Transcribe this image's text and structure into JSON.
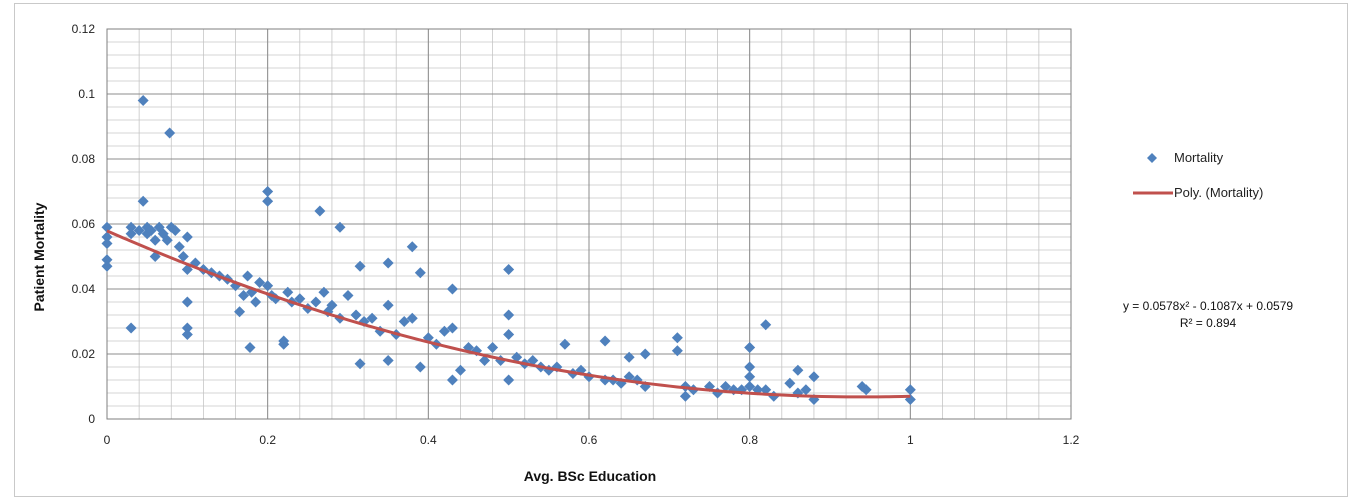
{
  "chart_data": {
    "type": "scatter",
    "xlabel": "Avg. BSc  Education",
    "ylabel": "Patient Mortality",
    "xlim": [
      0,
      1.2
    ],
    "ylim": [
      0,
      0.12
    ],
    "x_ticks": [
      "0",
      "0.2",
      "0.4",
      "0.6",
      "0.8",
      "1",
      "1.2"
    ],
    "y_ticks": [
      "0",
      "0.02",
      "0.04",
      "0.06",
      "0.08",
      "0.1",
      "0.12"
    ],
    "grid": true,
    "legend_position": "right",
    "series": [
      {
        "name": "Mortality",
        "type": "scatter",
        "marker": "diamond",
        "color": "#4f81bd",
        "points": [
          [
            0,
            0.059
          ],
          [
            0,
            0.056
          ],
          [
            0,
            0.054
          ],
          [
            0,
            0.049
          ],
          [
            0,
            0.047
          ],
          [
            0.03,
            0.059
          ],
          [
            0.03,
            0.057
          ],
          [
            0.03,
            0.028
          ],
          [
            0.04,
            0.058
          ],
          [
            0.045,
            0.098
          ],
          [
            0.045,
            0.067
          ],
          [
            0.05,
            0.059
          ],
          [
            0.05,
            0.057
          ],
          [
            0.055,
            0.058
          ],
          [
            0.06,
            0.055
          ],
          [
            0.06,
            0.05
          ],
          [
            0.065,
            0.059
          ],
          [
            0.07,
            0.057
          ],
          [
            0.075,
            0.055
          ],
          [
            0.078,
            0.088
          ],
          [
            0.08,
            0.059
          ],
          [
            0.085,
            0.058
          ],
          [
            0.09,
            0.053
          ],
          [
            0.095,
            0.05
          ],
          [
            0.1,
            0.056
          ],
          [
            0.1,
            0.046
          ],
          [
            0.1,
            0.036
          ],
          [
            0.1,
            0.028
          ],
          [
            0.1,
            0.026
          ],
          [
            0.11,
            0.048
          ],
          [
            0.12,
            0.046
          ],
          [
            0.13,
            0.045
          ],
          [
            0.14,
            0.044
          ],
          [
            0.15,
            0.043
          ],
          [
            0.16,
            0.041
          ],
          [
            0.165,
            0.033
          ],
          [
            0.17,
            0.038
          ],
          [
            0.175,
            0.044
          ],
          [
            0.178,
            0.022
          ],
          [
            0.18,
            0.039
          ],
          [
            0.185,
            0.036
          ],
          [
            0.19,
            0.042
          ],
          [
            0.2,
            0.07
          ],
          [
            0.2,
            0.067
          ],
          [
            0.2,
            0.041
          ],
          [
            0.205,
            0.038
          ],
          [
            0.21,
            0.037
          ],
          [
            0.22,
            0.024
          ],
          [
            0.22,
            0.023
          ],
          [
            0.225,
            0.039
          ],
          [
            0.23,
            0.036
          ],
          [
            0.24,
            0.037
          ],
          [
            0.25,
            0.034
          ],
          [
            0.26,
            0.036
          ],
          [
            0.265,
            0.064
          ],
          [
            0.27,
            0.039
          ],
          [
            0.275,
            0.033
          ],
          [
            0.28,
            0.035
          ],
          [
            0.29,
            0.059
          ],
          [
            0.29,
            0.031
          ],
          [
            0.3,
            0.038
          ],
          [
            0.31,
            0.032
          ],
          [
            0.315,
            0.047
          ],
          [
            0.315,
            0.017
          ],
          [
            0.32,
            0.03
          ],
          [
            0.33,
            0.031
          ],
          [
            0.34,
            0.027
          ],
          [
            0.35,
            0.048
          ],
          [
            0.35,
            0.035
          ],
          [
            0.35,
            0.018
          ],
          [
            0.36,
            0.026
          ],
          [
            0.37,
            0.03
          ],
          [
            0.38,
            0.053
          ],
          [
            0.38,
            0.031
          ],
          [
            0.39,
            0.045
          ],
          [
            0.39,
            0.016
          ],
          [
            0.4,
            0.025
          ],
          [
            0.41,
            0.023
          ],
          [
            0.42,
            0.027
          ],
          [
            0.43,
            0.04
          ],
          [
            0.43,
            0.028
          ],
          [
            0.43,
            0.012
          ],
          [
            0.44,
            0.015
          ],
          [
            0.45,
            0.022
          ],
          [
            0.46,
            0.021
          ],
          [
            0.47,
            0.018
          ],
          [
            0.48,
            0.022
          ],
          [
            0.49,
            0.018
          ],
          [
            0.5,
            0.046
          ],
          [
            0.5,
            0.032
          ],
          [
            0.5,
            0.026
          ],
          [
            0.5,
            0.012
          ],
          [
            0.51,
            0.019
          ],
          [
            0.52,
            0.017
          ],
          [
            0.53,
            0.018
          ],
          [
            0.54,
            0.016
          ],
          [
            0.55,
            0.015
          ],
          [
            0.56,
            0.016
          ],
          [
            0.57,
            0.023
          ],
          [
            0.58,
            0.014
          ],
          [
            0.59,
            0.015
          ],
          [
            0.6,
            0.013
          ],
          [
            0.62,
            0.024
          ],
          [
            0.62,
            0.012
          ],
          [
            0.63,
            0.012
          ],
          [
            0.64,
            0.011
          ],
          [
            0.65,
            0.019
          ],
          [
            0.65,
            0.013
          ],
          [
            0.66,
            0.012
          ],
          [
            0.67,
            0.02
          ],
          [
            0.67,
            0.01
          ],
          [
            0.71,
            0.025
          ],
          [
            0.71,
            0.021
          ],
          [
            0.72,
            0.01
          ],
          [
            0.72,
            0.007
          ],
          [
            0.73,
            0.009
          ],
          [
            0.75,
            0.01
          ],
          [
            0.76,
            0.008
          ],
          [
            0.77,
            0.01
          ],
          [
            0.78,
            0.009
          ],
          [
            0.79,
            0.009
          ],
          [
            0.8,
            0.022
          ],
          [
            0.8,
            0.016
          ],
          [
            0.8,
            0.013
          ],
          [
            0.8,
            0.01
          ],
          [
            0.81,
            0.009
          ],
          [
            0.82,
            0.029
          ],
          [
            0.82,
            0.009
          ],
          [
            0.83,
            0.007
          ],
          [
            0.85,
            0.011
          ],
          [
            0.86,
            0.015
          ],
          [
            0.86,
            0.008
          ],
          [
            0.87,
            0.009
          ],
          [
            0.88,
            0.013
          ],
          [
            0.88,
            0.006
          ],
          [
            0.94,
            0.01
          ],
          [
            0.945,
            0.009
          ],
          [
            1,
            0.009
          ],
          [
            1,
            0.006
          ]
        ]
      },
      {
        "name": "Poly. (Mortality)",
        "type": "trendline",
        "color": "#c0504d",
        "coefficients": [
          0.0578,
          -0.1087,
          0.0579
        ],
        "x_range": [
          0,
          1
        ]
      }
    ],
    "annotations": {
      "equation": "y = 0.0578x² - 0.1087x + 0.0579",
      "r_squared": "R² = 0.894"
    }
  }
}
